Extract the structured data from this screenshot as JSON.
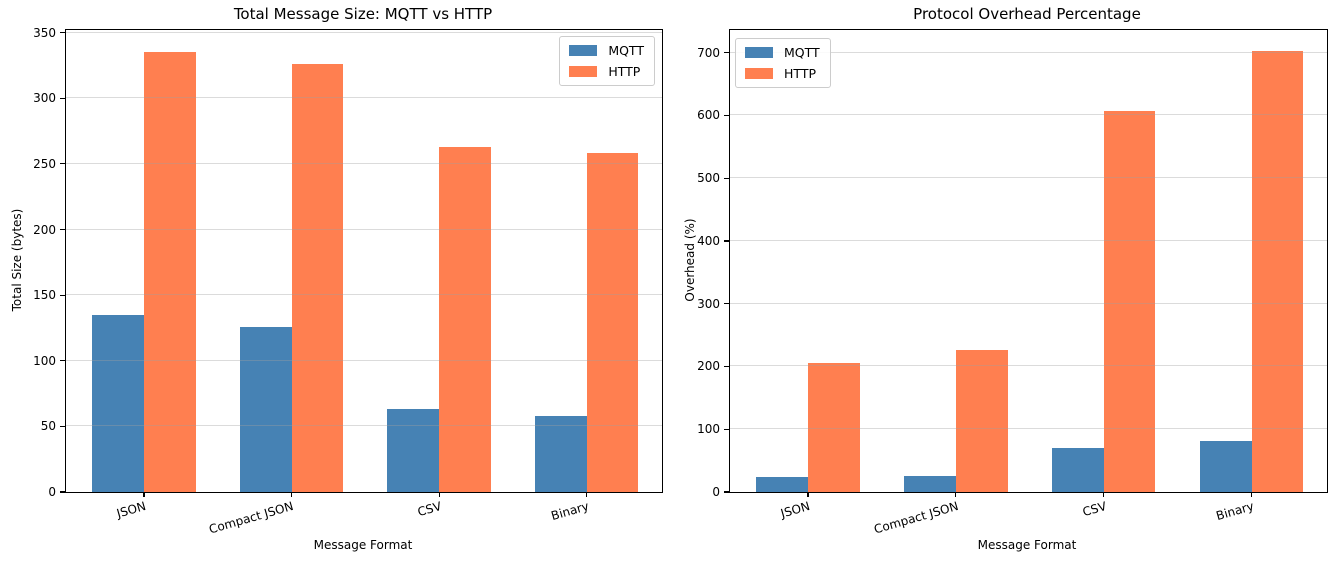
{
  "figure": {
    "background": "#ffffff"
  },
  "chart_data": [
    {
      "type": "bar",
      "title": "Total Message Size: MQTT vs HTTP",
      "xlabel": "Message Format",
      "ylabel": "Total Size (bytes)",
      "categories": [
        "JSON",
        "Compact JSON",
        "CSV",
        "Binary"
      ],
      "series": [
        {
          "name": "MQTT",
          "color": "#4682B4",
          "values": [
            135,
            126,
            63,
            58
          ]
        },
        {
          "name": "HTTP",
          "color": "#FF7F50",
          "values": [
            335,
            326,
            263,
            258
          ]
        }
      ],
      "yticks": [
        0,
        50,
        100,
        150,
        200,
        250,
        300,
        350
      ],
      "ylim": [
        0,
        352
      ],
      "grid": true,
      "legend_position": "upper-right"
    },
    {
      "type": "bar",
      "title": "Protocol Overhead Percentage",
      "xlabel": "Message Format",
      "ylabel": "Overhead (%)",
      "categories": [
        "JSON",
        "Compact JSON",
        "CSV",
        "Binary"
      ],
      "series": [
        {
          "name": "MQTT",
          "color": "#4682B4",
          "values": [
            24,
            26,
            70,
            81
          ]
        },
        {
          "name": "HTTP",
          "color": "#FF7F50",
          "values": [
            206,
            226,
            607,
            703
          ]
        }
      ],
      "yticks": [
        0,
        100,
        200,
        300,
        400,
        500,
        600,
        700
      ],
      "ylim": [
        0,
        736
      ],
      "grid": true,
      "legend_position": "upper-left"
    }
  ]
}
